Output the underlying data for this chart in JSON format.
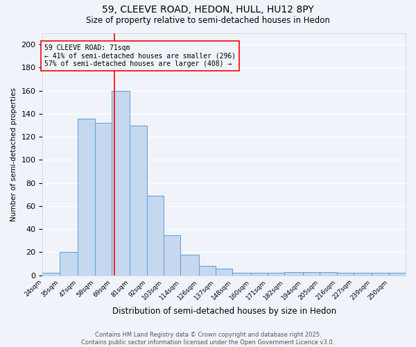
{
  "title1": "59, CLEEVE ROAD, HEDON, HULL, HU12 8PY",
  "title2": "Size of property relative to semi-detached houses in Hedon",
  "xlabel": "Distribution of semi-detached houses by size in Hedon",
  "ylabel": "Number of semi-detached properties",
  "bin_labels": [
    "24sqm",
    "35sqm",
    "47sqm",
    "58sqm",
    "69sqm",
    "81sqm",
    "92sqm",
    "103sqm",
    "114sqm",
    "126sqm",
    "137sqm",
    "148sqm",
    "160sqm",
    "171sqm",
    "182sqm",
    "194sqm",
    "205sqm",
    "216sqm",
    "227sqm",
    "239sqm",
    "250sqm"
  ],
  "bin_edges": [
    24,
    35,
    47,
    58,
    69,
    81,
    92,
    103,
    114,
    126,
    137,
    148,
    160,
    171,
    182,
    194,
    205,
    216,
    227,
    239,
    250
  ],
  "bar_values": [
    2,
    20,
    136,
    132,
    160,
    130,
    69,
    35,
    18,
    8,
    6,
    2,
    2,
    2,
    3,
    3,
    3,
    2,
    2,
    2,
    2
  ],
  "bar_color": "#c5d8f0",
  "bar_edgecolor": "#5a9fd4",
  "reference_line_x": 71,
  "reference_line_color": "red",
  "annotation_title": "59 CLEEVE ROAD: 71sqm",
  "annotation_line1": "← 41% of semi-detached houses are smaller (296)",
  "annotation_line2": "57% of semi-detached houses are larger (408) →",
  "annotation_box_color": "red",
  "ylim": [
    0,
    210
  ],
  "yticks": [
    0,
    20,
    40,
    60,
    80,
    100,
    120,
    140,
    160,
    180,
    200
  ],
  "footer1": "Contains HM Land Registry data © Crown copyright and database right 2025.",
  "footer2": "Contains public sector information licensed under the Open Government Licence v3.0.",
  "bg_color": "#f0f4fa"
}
